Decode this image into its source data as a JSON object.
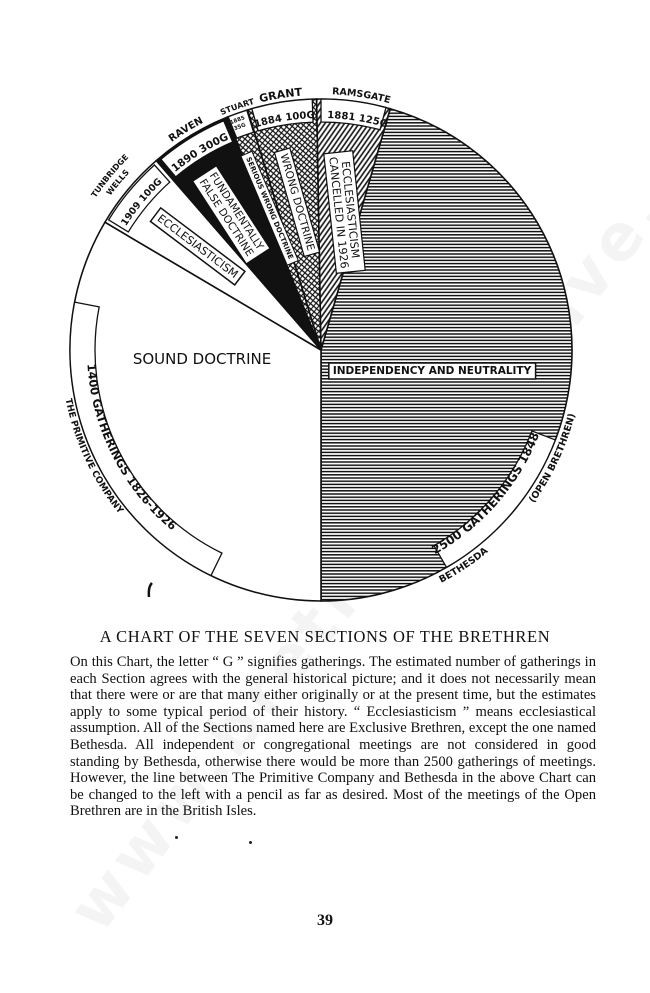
{
  "watermark": "www.brethrenarchive.org",
  "chart_data": {
    "type": "pie",
    "title": "A CHART OF THE SEVEN SECTIONS OF THE BRETHREN",
    "unit_note": "G = gatherings",
    "slices": [
      {
        "name": "BETHESDA",
        "subname": "(OPEN BRETHREN)",
        "band": "2500 GATHERINGS 1848",
        "year": "1848",
        "gatherings": 2500,
        "doctrine": "INDEPENDENCY AND NEUTRALITY",
        "fill": "horizontal-lines"
      },
      {
        "name": "THE PRIMITIVE COMPANY",
        "band": "1400 GATHERINGS 1826-1926",
        "year": "1826-1926",
        "gatherings": 1400,
        "doctrine": "SOUND DOCTRINE",
        "fill": "white"
      },
      {
        "name_line1": "TUNBRIDGE",
        "name_line2": "WELLS",
        "band": "1909 100G",
        "year": "1909",
        "gatherings": 100,
        "doctrine": "ECCLESIASTICISM",
        "fill": "white"
      },
      {
        "name": "RAVEN",
        "band": "1890 300G",
        "year": "1890",
        "gatherings": 300,
        "doctrine": "FUNDAMENTALLY FALSE DOCTRINE",
        "fill": "black"
      },
      {
        "name": "STUART",
        "band_line1": "1885",
        "band_line2": "35G",
        "year": "1885",
        "gatherings": 35,
        "doctrine": "SERIOUS WRONG DOCTRINE",
        "fill": "cross-hatch"
      },
      {
        "name": "GRANT",
        "band": "1884 100G",
        "year": "1884",
        "gatherings": 100,
        "doctrine": "WRONG DOCTRINE",
        "fill": "cross-hatch"
      },
      {
        "name": "RAMSGATE",
        "band": "1881 125G",
        "year": "1881",
        "gatherings": 125,
        "doctrine_line1": "ECCLESIASTICISM",
        "doctrine_line2": "CANCELLED IN 1926",
        "fill": "diagonal-hatch"
      }
    ]
  },
  "caption": "A CHART OF THE SEVEN SECTIONS OF THE BRETHREN",
  "body": "On this Chart, the letter “ G ” signifies gatherings.   The estimated number of gatherings in each Section agrees with the general historical picture; and it does not necessarily mean that there were or are that many either originally or at the present time, but the estimates apply to some typical period of their history.  “ Ecclesiasticism ”  means  ecclesiastical  assumption.  All of the Sections named here are Exclusive Brethren, except the one named Bethesda. All independent or congregational meetings are not considered in good standing by Bethesda, otherwise there would be more than 2500 gatherings of meetings. However, the line between The Primitive Company and Bethesda in the above Chart can be changed to the left with a pencil as far as desired.  Most of the meetings of the Open Brethren are in the British Isles.",
  "page_number": "39"
}
